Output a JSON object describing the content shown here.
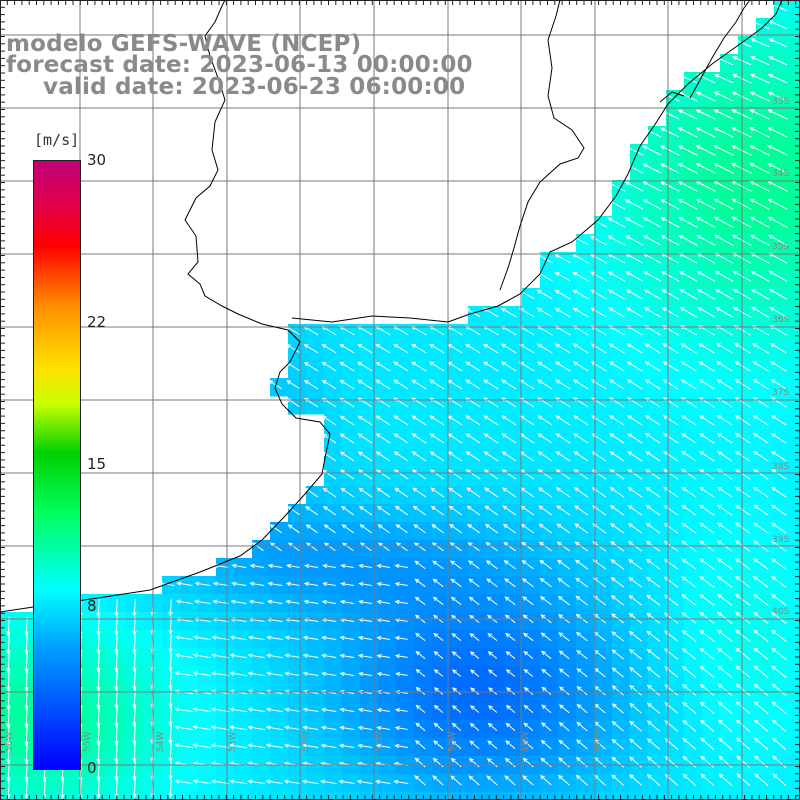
{
  "title": {
    "line1": "modelo GEFS-WAVE (NCEP)",
    "line2": "forecast date: 2023-06-13 00:00:00",
    "line3": "valid date: 2023-06-23 06:00:00"
  },
  "colorbar": {
    "unit": "[m/s]",
    "min": 0,
    "max": 30,
    "ticks": [
      {
        "label": "30",
        "value": 30
      },
      {
        "label": "22",
        "value": 22
      },
      {
        "label": "15",
        "value": 15
      },
      {
        "label": "8",
        "value": 8
      },
      {
        "label": "0",
        "value": 0
      }
    ]
  },
  "map": {
    "lon_labels": [
      "56W",
      "55W",
      "54W",
      "53W",
      "52W",
      "51W",
      "50W",
      "49W",
      "48W"
    ],
    "lat_labels": [
      "33S",
      "34S",
      "35S",
      "36S",
      "37S",
      "38S",
      "39S",
      "40S"
    ],
    "colors": {
      "grid": "#7a7a7a",
      "coast": "#000000",
      "arrows": "#ffffff",
      "border": "#222222"
    },
    "wind_arrows": "white arrows showing wind direction over the sea"
  }
}
